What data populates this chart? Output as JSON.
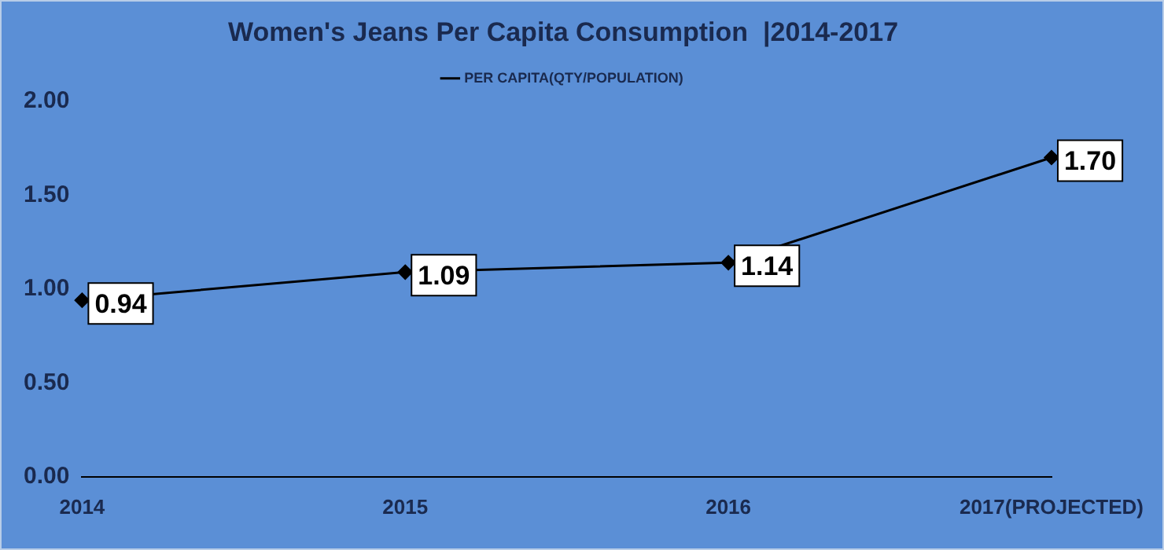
{
  "chart_data": {
    "type": "line",
    "title": "Women's Jeans Per Capita Consumption  |2014-2017",
    "categories": [
      "2014",
      "2015",
      "2016",
      "2017(PROJECTED)"
    ],
    "series": [
      {
        "name": "PER CAPITA(QTY/POPULATION)",
        "color": "#000000",
        "values": [
          0.94,
          1.09,
          1.14,
          1.7
        ],
        "value_labels": [
          "0.94",
          "1.09",
          "1.14",
          "1.70"
        ]
      }
    ],
    "ylim": [
      0,
      2
    ],
    "yticks": [
      {
        "value": 0,
        "label": "0.00"
      },
      {
        "value": 0.5,
        "label": "0.50"
      },
      {
        "value": 1,
        "label": "1.00"
      },
      {
        "value": 1.5,
        "label": "1.50"
      },
      {
        "value": 2,
        "label": "2.00"
      }
    ],
    "grid": false,
    "legend": "top",
    "marker": "diamond",
    "line_style": "solid"
  }
}
